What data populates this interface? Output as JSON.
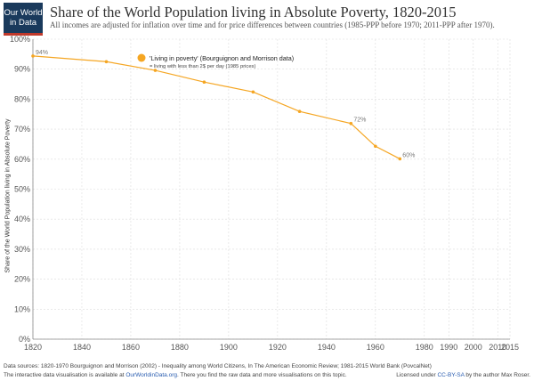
{
  "logo": {
    "line1": "Our World",
    "line2": "in Data"
  },
  "title": "Share of the World Population living in Absolute Poverty, 1820-2015",
  "subtitle": "All incomes are adjusted for inflation over time and for price differences between countries (1985-PPP before 1970; 2011-PPP after 1970).",
  "footer": {
    "sources": "Data sources: 1820-1970 Bourguignon and Morrison (2002) - Inequality among World Citizens, In The American Economic Review; 1981-2015 World Bank (PovcalNet)",
    "prefix": "The interactive data visualisation is available at",
    "site": "OurWorldinData.org",
    "suffix": ". There you find the raw data and more visualisations on this topic.",
    "license_prefix": "Licensed under",
    "license": "CC-BY-SA",
    "license_suffix": " by the author Max Roser."
  },
  "colors": {
    "series": "#f5a623",
    "grid": "#dcdcdc",
    "axis": "#888888"
  },
  "chart_data": {
    "type": "line",
    "title": "Share of the World Population living in Absolute Poverty, 1820-2015",
    "xlabel": "",
    "ylabel": "Share of the World Population living in Absolute Poverty",
    "xlim": [
      1820,
      2015
    ],
    "ylim": [
      0,
      100
    ],
    "x_ticks": [
      "1820",
      "1840",
      "1860",
      "1880",
      "1900",
      "1920",
      "1940",
      "1960",
      "1980",
      "1990",
      "2000",
      "2010",
      "2015"
    ],
    "y_ticks": [
      "0%",
      "10%",
      "20%",
      "30%",
      "40%",
      "50%",
      "60%",
      "70%",
      "80%",
      "90%",
      "100%"
    ],
    "grid": true,
    "legend": {
      "position": "top-left",
      "label": "'Living in poverty' (Bourguignon and Morrison data)",
      "sublabel": "= living with less than 2$ per day (1985 prices)"
    },
    "series": [
      {
        "name": "'Living in poverty' (Bourguignon and Morrison data)",
        "x": [
          1820,
          1850,
          1870,
          1890,
          1910,
          1929,
          1950,
          1960,
          1970
        ],
        "y": [
          94.4,
          92.5,
          89.6,
          85.7,
          82.4,
          75.9,
          71.9,
          64.3,
          60.1
        ]
      }
    ],
    "data_labels": [
      {
        "x": 1820,
        "y": 94.4,
        "text": "94%"
      },
      {
        "x": 1950,
        "y": 71.9,
        "text": "72%"
      },
      {
        "x": 1970,
        "y": 60.1,
        "text": "60%"
      }
    ]
  }
}
